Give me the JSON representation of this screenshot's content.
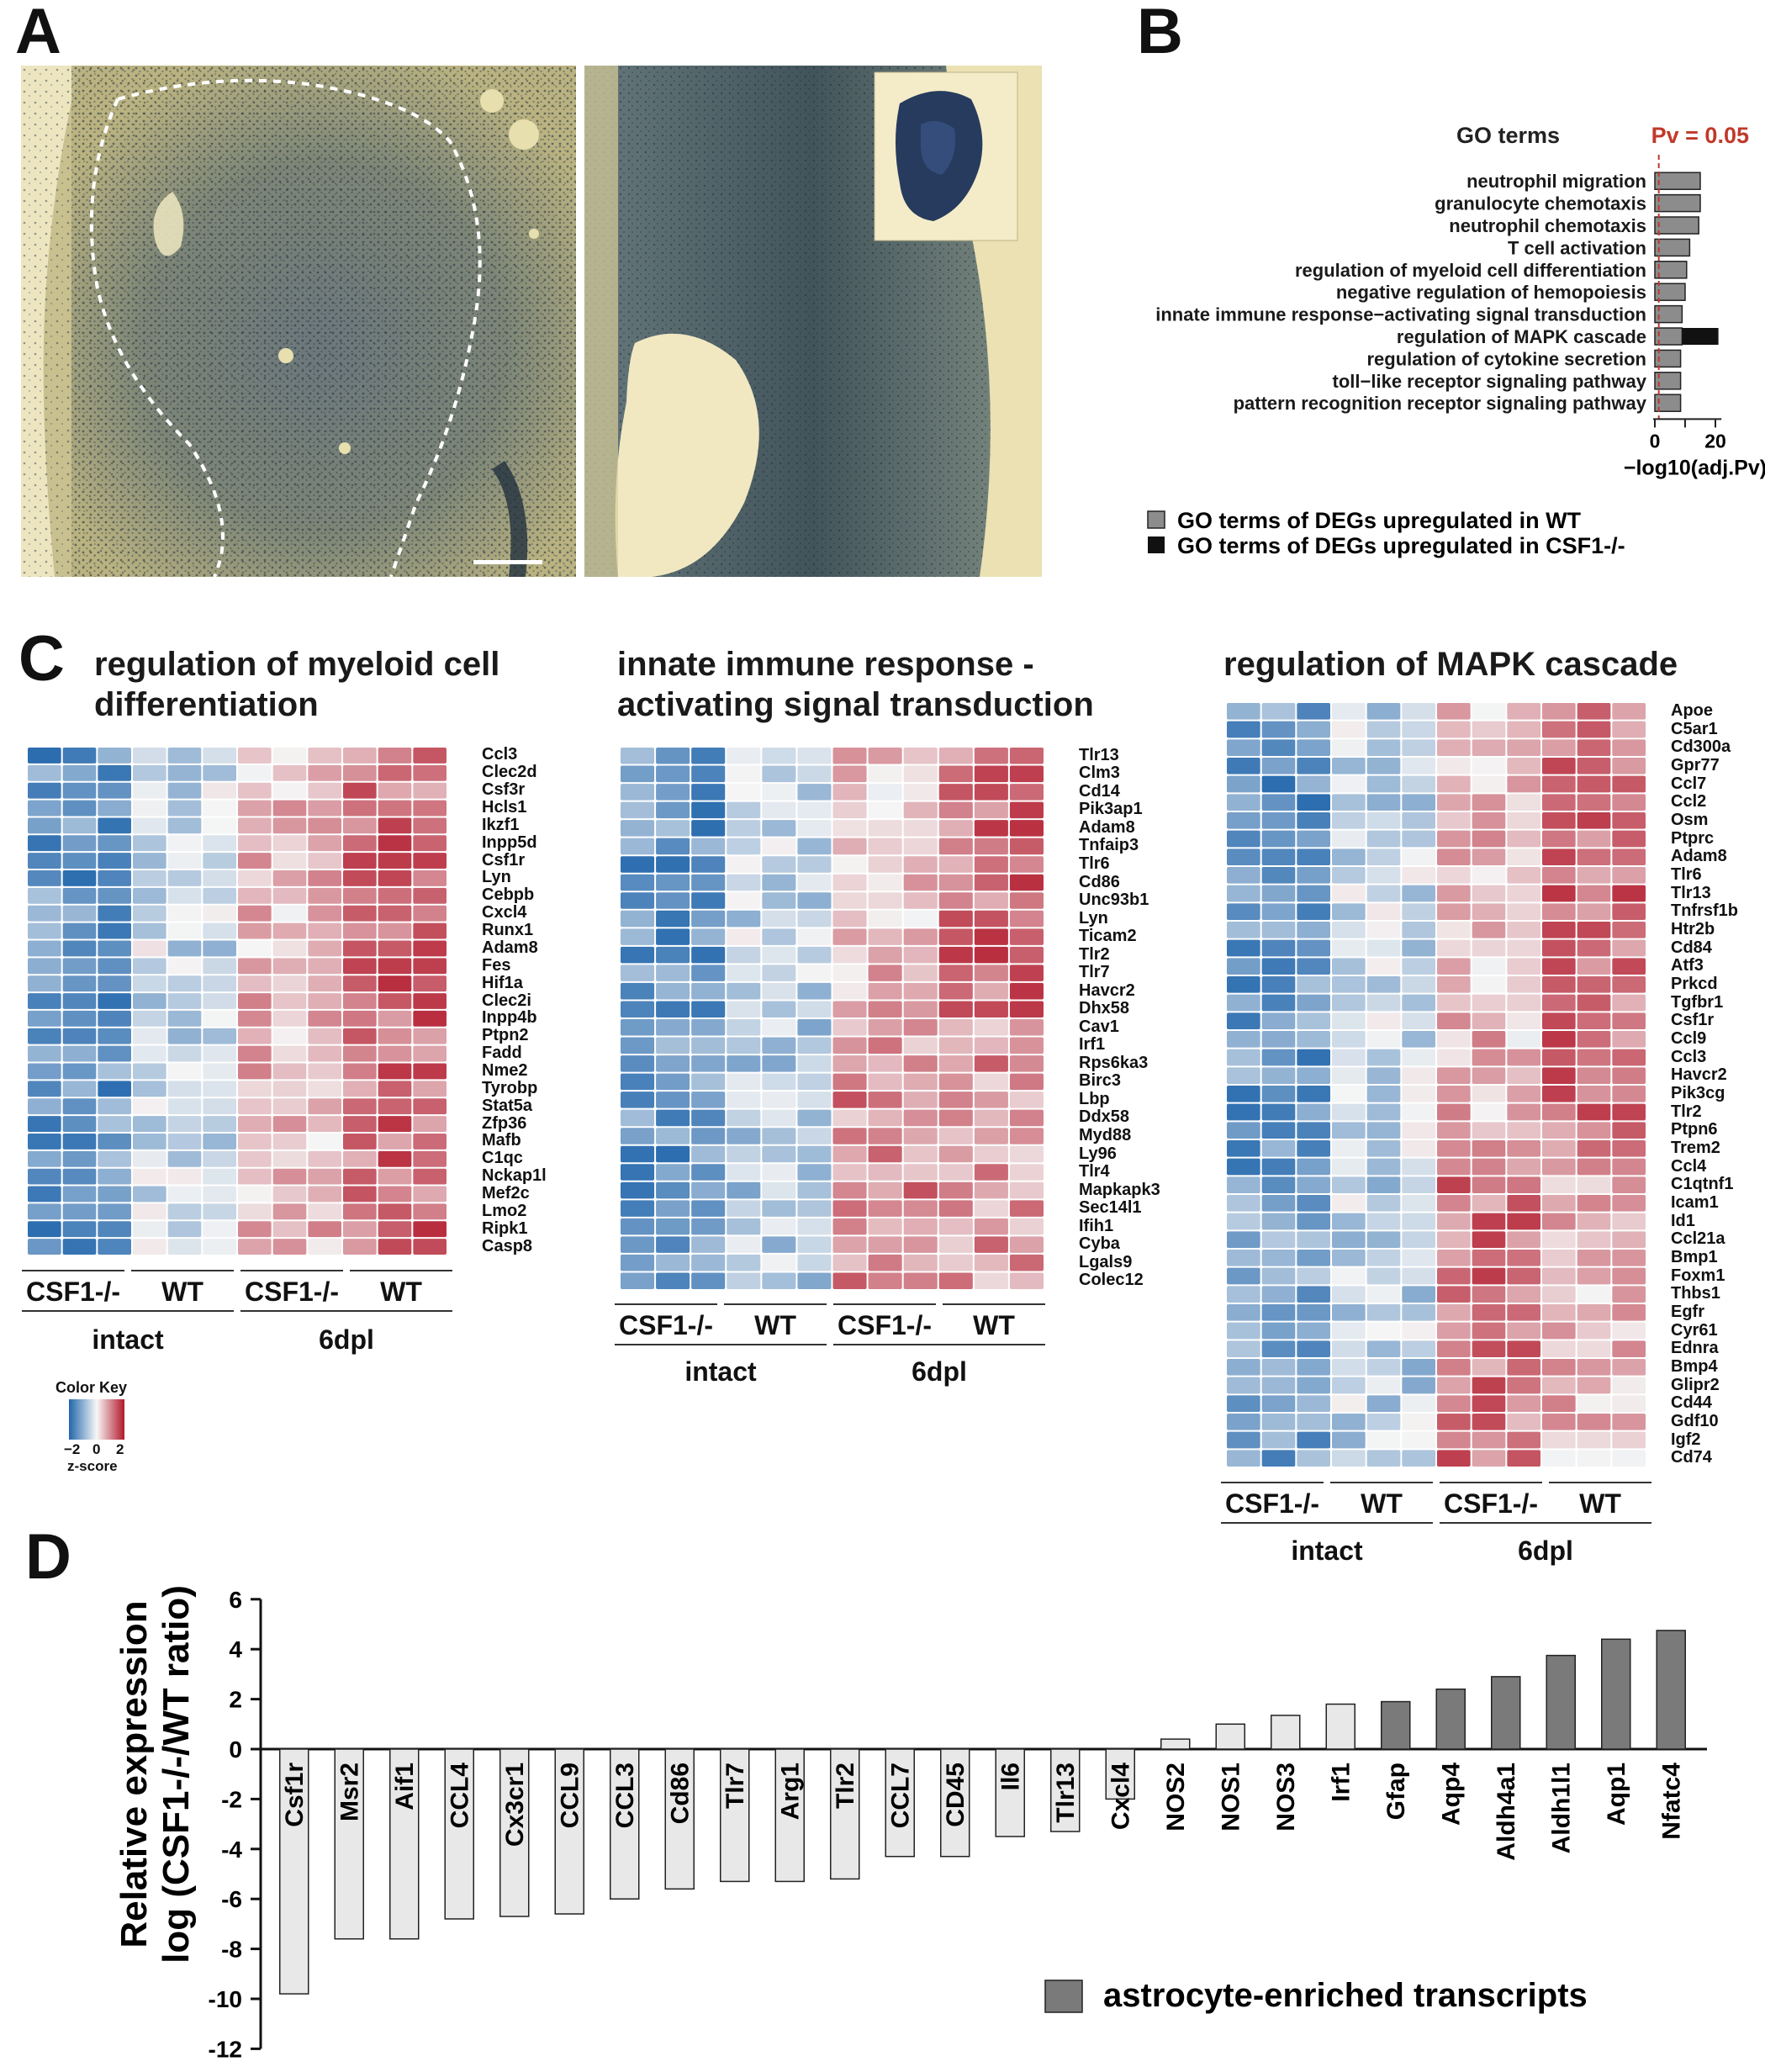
{
  "panels": {
    "a": "A",
    "b": "B",
    "c": "C",
    "d": "D"
  },
  "panel_b": {
    "header": "GO terms",
    "threshold_label": "Pv = 0.05",
    "xlabel": "−log10(adj.Pv)",
    "xticks": [
      "0",
      "20"
    ],
    "terms": [
      {
        "label": "neutrophil migration",
        "wt": 15,
        "csf": 0
      },
      {
        "label": "granulocyte chemotaxis",
        "wt": 15,
        "csf": 0
      },
      {
        "label": "neutrophil chemotaxis",
        "wt": 14.5,
        "csf": 0
      },
      {
        "label": "T cell activation",
        "wt": 11.5,
        "csf": 0
      },
      {
        "label": "regulation of myeloid cell differentiation",
        "wt": 10.5,
        "csf": 0
      },
      {
        "label": "negative regulation of hemopoiesis",
        "wt": 10,
        "csf": 0
      },
      {
        "label": "innate immune response−activating signal transduction",
        "wt": 9,
        "csf": 0
      },
      {
        "label": "regulation of MAPK cascade",
        "wt": 9,
        "csf": 12
      },
      {
        "label": "regulation of cytokine secretion",
        "wt": 8.5,
        "csf": 0
      },
      {
        "label": "toll−like receptor signaling pathway",
        "wt": 8.5,
        "csf": 0
      },
      {
        "label": "pattern recognition receptor signaling pathway",
        "wt": 8.5,
        "csf": 0
      }
    ],
    "legend": [
      "GO terms of DEGs upregulated in WT",
      "GO terms of DEGs upregulated in CSF1-/-"
    ],
    "colors": {
      "wt": "#8c8c8c",
      "csf": "#111111",
      "threshold": "#c0392b"
    }
  },
  "panel_c": {
    "groups": [
      "CSF1-/-",
      "WT",
      "CSF1-/-",
      "WT"
    ],
    "conditions": [
      "intact",
      "6dpl"
    ],
    "color_key": {
      "title": "Color Key",
      "ticks": [
        "−2",
        "0",
        "2"
      ],
      "label": "z-score"
    },
    "heatmaps": [
      {
        "title": [
          "regulation of myeloid cell",
          "differentiation"
        ],
        "genes": [
          "Ccl3",
          "Clec2d",
          "Csf3r",
          "Hcls1",
          "Ikzf1",
          "Inpp5d",
          "Csf1r",
          "Lyn",
          "Cebpb",
          "Cxcl4",
          "Runx1",
          "Adam8",
          "Fes",
          "Hif1a",
          "Clec2i",
          "Inpp4b",
          "Ptpn2",
          "Fadd",
          "Nme2",
          "Tyrobp",
          "Stat5a",
          "Zfp36",
          "Mafb",
          "C1qc",
          "Nckap1l",
          "Mef2c",
          "Lmo2",
          "Ripk1",
          "Casp8"
        ]
      },
      {
        "title": [
          "innate immune response -",
          "activating signal transduction"
        ],
        "genes": [
          "Tlr13",
          "Clm3",
          "Cd14",
          "Pik3ap1",
          "Adam8",
          "Tnfaip3",
          "Tlr6",
          "Cd86",
          "Unc93b1",
          "Lyn",
          "Ticam2",
          "Tlr2",
          "Tlr7",
          "Havcr2",
          "Dhx58",
          "Cav1",
          "Irf1",
          "Rps6ka3",
          "Birc3",
          "Lbp",
          "Ddx58",
          "Myd88",
          "Ly96",
          "Tlr4",
          "Mapkapk3",
          "Sec14l1",
          "Ifih1",
          "Cyba",
          "Lgals9",
          "Colec12"
        ]
      },
      {
        "title": [
          "regulation of MAPK cascade"
        ],
        "genes": [
          "Apoe",
          "C5ar1",
          "Cd300a",
          "Gpr77",
          "Ccl7",
          "Ccl2",
          "Osm",
          "Ptprc",
          "Adam8",
          "Tlr6",
          "Tlr13",
          "Tnfrsf1b",
          "Htr2b",
          "Cd84",
          "Atf3",
          "Prkcd",
          "Tgfbr1",
          "Csf1r",
          "Ccl9",
          "Ccl3",
          "Havcr2",
          "Pik3cg",
          "Tlr2",
          "Ptpn6",
          "Trem2",
          "Ccl4",
          "C1qtnf1",
          "Icam1",
          "Id1",
          "Ccl21a",
          "Bmp1",
          "Foxm1",
          "Thbs1",
          "Egfr",
          "Cyr61",
          "Ednra",
          "Bmp4",
          "Glipr2",
          "Cd44",
          "Gdf10",
          "Igf2",
          "Cd74"
        ]
      }
    ]
  },
  "chart_data": {
    "type": "bar",
    "ylabel": "Relative expression log (CSF1-/-/WT ratio)",
    "ylim": [
      -12,
      6
    ],
    "yticks": [
      "6",
      "4",
      "2",
      "0",
      "-2",
      "-4",
      "-6",
      "-8",
      "-10",
      "-12"
    ],
    "categories": [
      "Csf1r",
      "Msr2",
      "Aif1",
      "CCL4",
      "Cx3cr1",
      "CCL9",
      "CCL3",
      "Cd86",
      "Tlr7",
      "Arg1",
      "Tlr2",
      "CCL7",
      "CD45",
      "Il6",
      "Tlr13",
      "Cxcl4",
      "NOS2",
      "NOS1",
      "NOS3",
      "Irf1",
      "Gfap",
      "Aqp4",
      "Aldh4a1",
      "Aldh1l1",
      "Aqp1",
      "Nfatc4"
    ],
    "values": [
      -9.8,
      -7.6,
      -7.6,
      -6.8,
      -6.7,
      -6.6,
      -6.0,
      -5.6,
      -5.3,
      -5.3,
      -5.2,
      -4.3,
      -4.3,
      -3.5,
      -3.3,
      -2.0,
      0.4,
      1.0,
      1.35,
      1.8,
      1.9,
      2.4,
      2.9,
      3.75,
      4.4,
      4.75
    ],
    "astro": [
      false,
      false,
      false,
      false,
      false,
      false,
      false,
      false,
      false,
      false,
      false,
      false,
      false,
      false,
      false,
      false,
      false,
      false,
      false,
      false,
      true,
      true,
      true,
      true,
      true,
      true
    ],
    "legend": "astrocyte-enriched transcripts",
    "colors": {
      "light": "#e8e8e8",
      "astro": "#7a7a7a",
      "edge": "#222222"
    }
  }
}
